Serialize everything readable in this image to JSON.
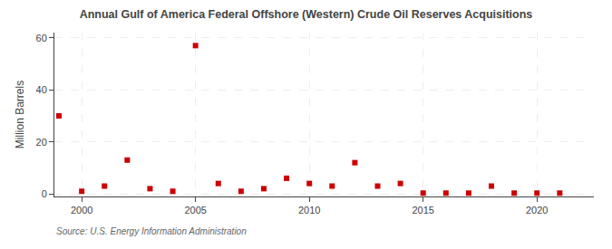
{
  "chart_data": {
    "type": "scatter",
    "title": "Annual Gulf of America Federal Offshore (Western) Crude Oil Reserves Acquisitions",
    "ylabel": "Million Barrels",
    "annotations": [
      "Source: U.S. Energy Information Administration"
    ],
    "x": [
      1999,
      2000,
      2001,
      2002,
      2003,
      2004,
      2005,
      2006,
      2007,
      2008,
      2009,
      2010,
      2011,
      2012,
      2013,
      2014,
      2015,
      2016,
      2017,
      2018,
      2019,
      2020,
      2021
    ],
    "values": [
      30,
      1,
      3,
      13,
      2,
      1,
      57,
      4,
      1,
      2,
      6,
      4,
      3,
      12,
      3,
      4,
      0.3,
      0.3,
      0.3,
      3,
      0.3,
      0.3,
      0.3
    ],
    "color": "#cc0000",
    "marker": "square",
    "xlim": [
      1998.8,
      2022.5
    ],
    "ylim": [
      -1,
      62
    ],
    "xticks": [
      2000,
      2005,
      2010,
      2015,
      2020
    ],
    "yticks": [
      0,
      20,
      40,
      60
    ],
    "grid": true
  }
}
